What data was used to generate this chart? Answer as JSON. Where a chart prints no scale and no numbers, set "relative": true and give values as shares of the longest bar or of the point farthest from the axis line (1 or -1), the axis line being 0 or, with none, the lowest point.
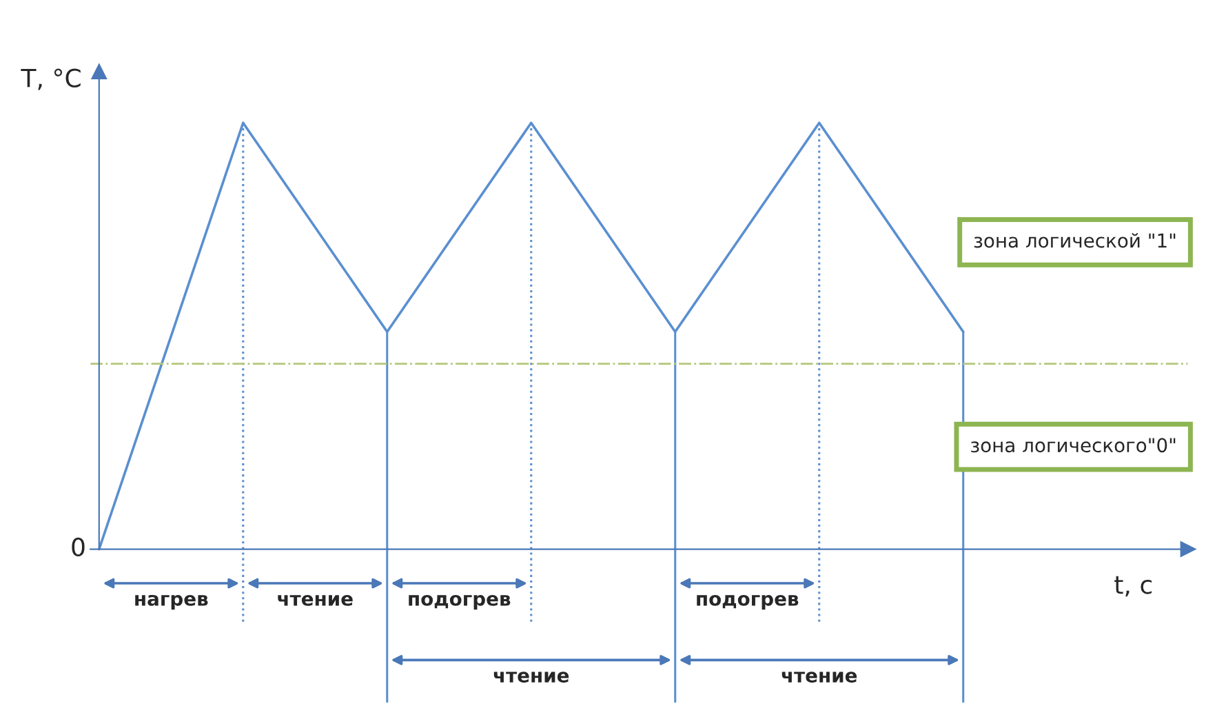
{
  "chart_data": {
    "type": "line",
    "relative": true,
    "xlabel": "t, с",
    "ylabel": "Т, °С",
    "categories": [
      null,
      null,
      null,
      null,
      null,
      null,
      null
    ],
    "series": [
      {
        "color": "#5b8fd0",
        "values": [
          0,
          1.0,
          0.51,
          1.0,
          0.51,
          1.0,
          0.51
        ]
      }
    ],
    "ref_lines": [
      {
        "axis": "y",
        "value": 0.435,
        "color": "#b5c77a",
        "line_style": "dashdot"
      }
    ],
    "annotations": [
      "0",
      "зона логической \"1\"",
      "зона логического\"0\"",
      "нагрев",
      "чтение",
      "подогрев",
      "подогрев",
      "чтение",
      "чтение"
    ],
    "grid": "x",
    "legend": false,
    "marker": "none",
    "line_style": "solid"
  }
}
